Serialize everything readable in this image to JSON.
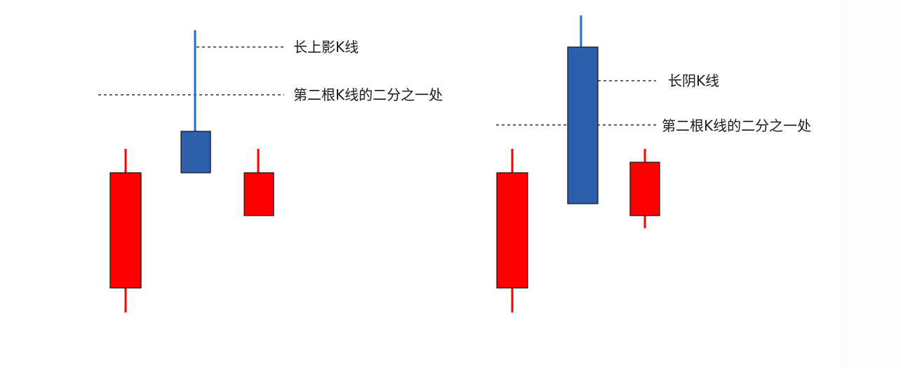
{
  "colors": {
    "bullish": "#ff0000",
    "bearish_body": "#2e5faa",
    "bearish_wick": "#1f6fd0",
    "outline": "#111111",
    "dash": "#333333",
    "background": "#ffffff"
  },
  "left_panel": {
    "label_upper_shadow": "长上影K线",
    "label_half_line": "第二根K线的二分之一处",
    "candles": [
      {
        "name": "first",
        "color": "bullish"
      },
      {
        "name": "second",
        "color": "bearish"
      },
      {
        "name": "third",
        "color": "bullish"
      }
    ]
  },
  "right_panel": {
    "label_long_bearish": "长阴K线",
    "label_half_line": "第二根K线的二分之一处",
    "candles": [
      {
        "name": "first",
        "color": "bullish"
      },
      {
        "name": "second",
        "color": "bearish"
      },
      {
        "name": "third",
        "color": "bullish"
      }
    ]
  }
}
